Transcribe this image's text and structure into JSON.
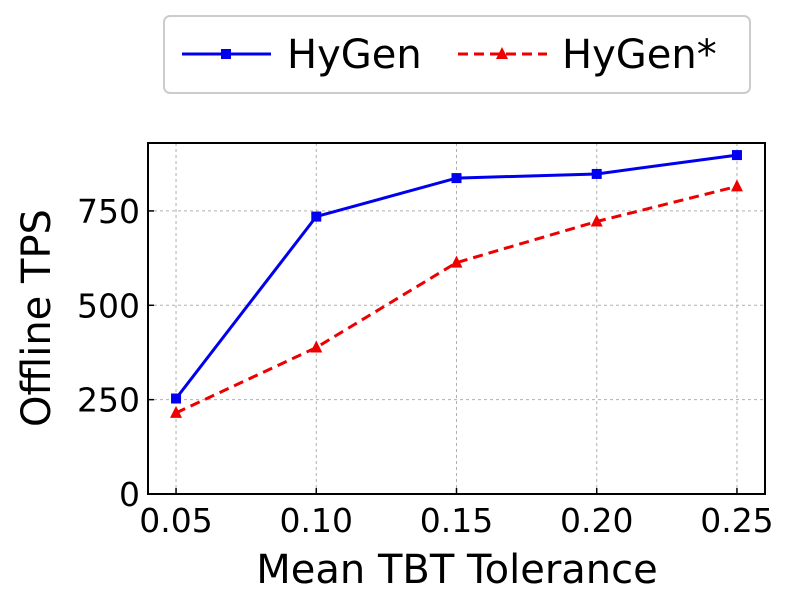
{
  "chart_data": {
    "type": "line",
    "title": "",
    "xlabel": "Mean TBT Tolerance",
    "ylabel": "Offline TPS",
    "x": [
      0.05,
      0.1,
      0.15,
      0.2,
      0.25
    ],
    "xticks": [
      0.05,
      0.1,
      0.15,
      0.2,
      0.25
    ],
    "xtick_labels": [
      "0.05",
      "0.10",
      "0.15",
      "0.20",
      "0.25"
    ],
    "yticks": [
      0,
      250,
      500,
      750
    ],
    "ytick_labels": [
      "0",
      "250",
      "500",
      "750"
    ],
    "xlim": [
      0.04,
      0.26
    ],
    "ylim": [
      0,
      930
    ],
    "grid": true,
    "legend_position": "top-center, outside",
    "series": [
      {
        "name": "HyGen",
        "color": "#0000ee",
        "line_style": "solid",
        "marker": "square",
        "values": [
          253,
          735,
          837,
          848,
          898
        ]
      },
      {
        "name": "HyGen*",
        "color": "#ee0000",
        "line_style": "dashed",
        "marker": "triangle",
        "values": [
          215,
          388,
          613,
          722,
          815
        ]
      }
    ]
  }
}
